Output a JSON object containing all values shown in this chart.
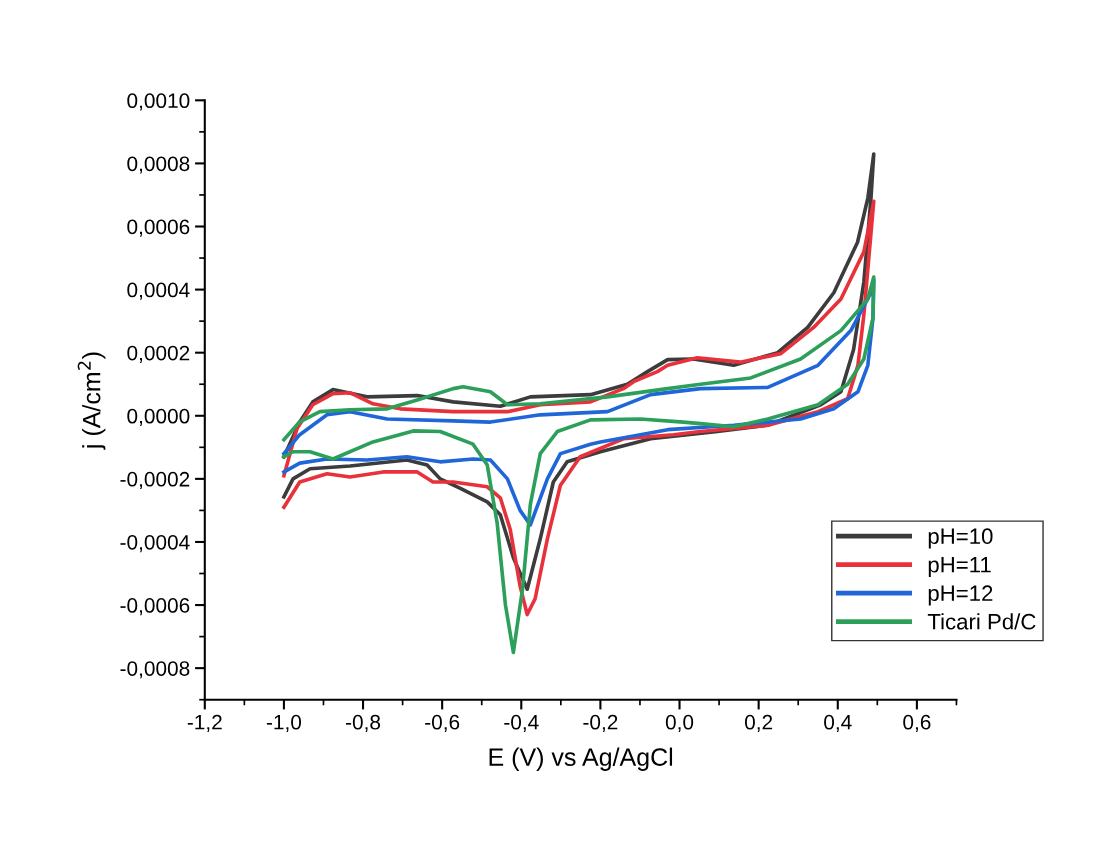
{
  "chart_data": {
    "type": "line",
    "xlabel": "E (V) vs Ag/AgCl",
    "ylabel": "j (A/cm$^{2}$)",
    "xlim": [
      -1.2,
      0.7
    ],
    "ylim": [
      -0.0009,
      0.001
    ],
    "xticks": [
      {
        "value": -1.2,
        "label": "-1,2"
      },
      {
        "value": -1.0,
        "label": "-1,0"
      },
      {
        "value": -0.8,
        "label": "-0,8"
      },
      {
        "value": -0.6,
        "label": "-0,6"
      },
      {
        "value": -0.4,
        "label": "-0,4"
      },
      {
        "value": -0.2,
        "label": "-0,2"
      },
      {
        "value": 0.0,
        "label": "0,0"
      },
      {
        "value": 0.2,
        "label": "0,2"
      },
      {
        "value": 0.4,
        "label": "0,4"
      },
      {
        "value": 0.6,
        "label": "0,6"
      }
    ],
    "yticks": [
      {
        "value": -0.0008,
        "label": "-0,0008"
      },
      {
        "value": -0.0006,
        "label": "-0,0006"
      },
      {
        "value": -0.0004,
        "label": "-0,0004"
      },
      {
        "value": -0.0002,
        "label": "-0,0002"
      },
      {
        "value": 0.0,
        "label": "0,0000"
      },
      {
        "value": 0.0002,
        "label": "0,0002"
      },
      {
        "value": 0.0004,
        "label": "0,0004"
      },
      {
        "value": 0.0006,
        "label": "0,0006"
      },
      {
        "value": 0.0008,
        "label": "0,0008"
      },
      {
        "value": 0.001,
        "label": "0,0010"
      }
    ],
    "grid": false,
    "legend": "bottom right",
    "marker": "none",
    "line_style": "solid",
    "series": [
      {
        "name": "pH=10",
        "color": "#3c3c3c",
        "x": [
          -1.0,
          -0.96,
          -0.927,
          -0.876,
          -0.79,
          -0.663,
          -0.572,
          -0.453,
          -0.377,
          -0.225,
          -0.132,
          -0.081,
          -0.03,
          0.035,
          0.137,
          0.248,
          0.324,
          0.39,
          0.45,
          0.476,
          0.491,
          0.484,
          0.466,
          0.44,
          0.408,
          0.357,
          0.223,
          0.096,
          -0.073,
          -0.2,
          -0.284,
          -0.319,
          -0.352,
          -0.385,
          -0.42,
          -0.453,
          -0.486,
          -0.554,
          -0.605,
          -0.638,
          -0.689,
          -0.833,
          -0.934,
          -0.977,
          -1.0
        ],
        "values": [
          -0.00013,
          -2e-05,
          4.4e-05,
          8.3e-05,
          6e-05,
          6.4e-05,
          4.4e-05,
          3e-05,
          6e-05,
          6.7e-05,
          0.0001,
          0.00014,
          0.000178,
          0.00018,
          0.00016,
          0.0002,
          0.00028,
          0.00039,
          0.00055,
          0.00069,
          0.00083,
          0.00069,
          0.000425,
          0.00021,
          7.6e-05,
          3.5e-05,
          -3e-05,
          -5e-05,
          -7.3e-05,
          -0.000114,
          -0.000146,
          -0.00021,
          -0.00039,
          -0.00055,
          -0.00045,
          -0.000314,
          -0.000273,
          -0.00023,
          -0.0002,
          -0.000156,
          -0.00014,
          -0.000159,
          -0.000168,
          -0.0002,
          -0.000257
        ]
      },
      {
        "name": "pH=11",
        "color": "#e8313a",
        "x": [
          -1.0,
          -0.967,
          -0.927,
          -0.876,
          -0.833,
          -0.775,
          -0.706,
          -0.572,
          -0.435,
          -0.352,
          -0.225,
          -0.142,
          -0.116,
          -0.056,
          -0.03,
          0.045,
          0.154,
          0.256,
          0.339,
          0.408,
          0.466,
          0.491,
          0.484,
          0.466,
          0.451,
          0.425,
          0.35,
          0.223,
          0.053,
          -0.015,
          -0.142,
          -0.251,
          -0.301,
          -0.334,
          -0.365,
          -0.385,
          -0.403,
          -0.428,
          -0.453,
          -0.486,
          -0.572,
          -0.623,
          -0.663,
          -0.749,
          -0.833,
          -0.891,
          -0.96,
          -1.0
        ],
        "values": [
          -0.00019,
          -4e-05,
          3.5e-05,
          7e-05,
          7.3e-05,
          3.8e-05,
          2.2e-05,
          1.3e-05,
          1.3e-05,
          3.5e-05,
          4.4e-05,
          8.6e-05,
          0.000108,
          0.00014,
          0.00016,
          0.000184,
          0.00017,
          0.000197,
          0.00028,
          0.00037,
          0.00052,
          0.00068,
          0.00058,
          0.00032,
          0.00016,
          5.4e-05,
          1.3e-05,
          -3e-05,
          -5e-05,
          -6e-05,
          -7.3e-05,
          -0.00013,
          -0.00022,
          -0.00039,
          -0.00058,
          -0.00063,
          -0.00054,
          -0.00036,
          -0.00026,
          -0.000225,
          -0.00021,
          -0.00021,
          -0.000178,
          -0.000178,
          -0.000194,
          -0.000184,
          -0.00021,
          -0.00029
        ]
      },
      {
        "name": "pH=12",
        "color": "#1f66d9",
        "x": [
          -1.0,
          -0.96,
          -0.891,
          -0.833,
          -0.739,
          -0.572,
          -0.478,
          -0.352,
          -0.182,
          -0.073,
          0.053,
          0.223,
          0.35,
          0.433,
          0.484,
          0.491,
          0.489,
          0.476,
          0.451,
          0.39,
          0.306,
          0.137,
          -0.03,
          -0.099,
          -0.2,
          -0.225,
          -0.301,
          -0.334,
          -0.377,
          -0.403,
          -0.435,
          -0.478,
          -0.522,
          -0.605,
          -0.689,
          -0.79,
          -0.891,
          -0.96,
          -1.0
        ],
        "values": [
          -0.00012,
          -6e-05,
          3e-06,
          1.3e-05,
          -1e-05,
          -1.6e-05,
          -2e-05,
          3e-06,
          1.3e-05,
          6.7e-05,
          8.6e-05,
          9e-05,
          0.00016,
          0.00027,
          0.00039,
          0.00043,
          0.00031,
          0.00016,
          7.6e-05,
          2.2e-05,
          -1e-05,
          -3e-05,
          -4.4e-05,
          -6e-05,
          -8.3e-05,
          -9e-05,
          -0.00012,
          -0.0002,
          -0.000346,
          -0.0003,
          -0.0002,
          -0.00014,
          -0.000137,
          -0.000146,
          -0.00013,
          -0.00014,
          -0.000137,
          -0.00015,
          -0.000178
        ]
      },
      {
        "name": "Ticari Pd/C",
        "color": "#2ca05a",
        "x": [
          -1.0,
          -0.96,
          -0.909,
          -0.833,
          -0.739,
          -0.663,
          -0.572,
          -0.547,
          -0.478,
          -0.435,
          -0.352,
          -0.182,
          -0.03,
          0.053,
          0.18,
          0.306,
          0.408,
          0.476,
          0.491,
          0.489,
          0.466,
          0.425,
          0.35,
          0.223,
          0.137,
          0.053,
          0.01,
          -0.099,
          -0.225,
          -0.309,
          -0.352,
          -0.377,
          -0.397,
          -0.42,
          -0.44,
          -0.461,
          -0.486,
          -0.522,
          -0.605,
          -0.673,
          -0.775,
          -0.876,
          -0.934,
          -0.977,
          -1.0
        ],
        "values": [
          -7.6e-05,
          -1.9e-05,
          1.3e-05,
          1.9e-05,
          2.2e-05,
          5e-05,
          8.6e-05,
          9.2e-05,
          7.6e-05,
          3.5e-05,
          3.8e-05,
          6e-05,
          8.6e-05,
          0.0001,
          0.00012,
          0.00018,
          0.00027,
          0.00037,
          0.00044,
          0.00031,
          0.00018,
          0.0001,
          3.5e-05,
          -1e-05,
          -3.5e-05,
          -2.5e-05,
          -2e-05,
          -1e-05,
          -1.3e-05,
          -5e-05,
          -0.00012,
          -0.00028,
          -0.00055,
          -0.00075,
          -0.0006,
          -0.00034,
          -0.000156,
          -9e-05,
          -5e-05,
          -4.8e-05,
          -8.3e-05,
          -0.000137,
          -0.000114,
          -0.000114,
          -0.00013
        ]
      }
    ]
  }
}
